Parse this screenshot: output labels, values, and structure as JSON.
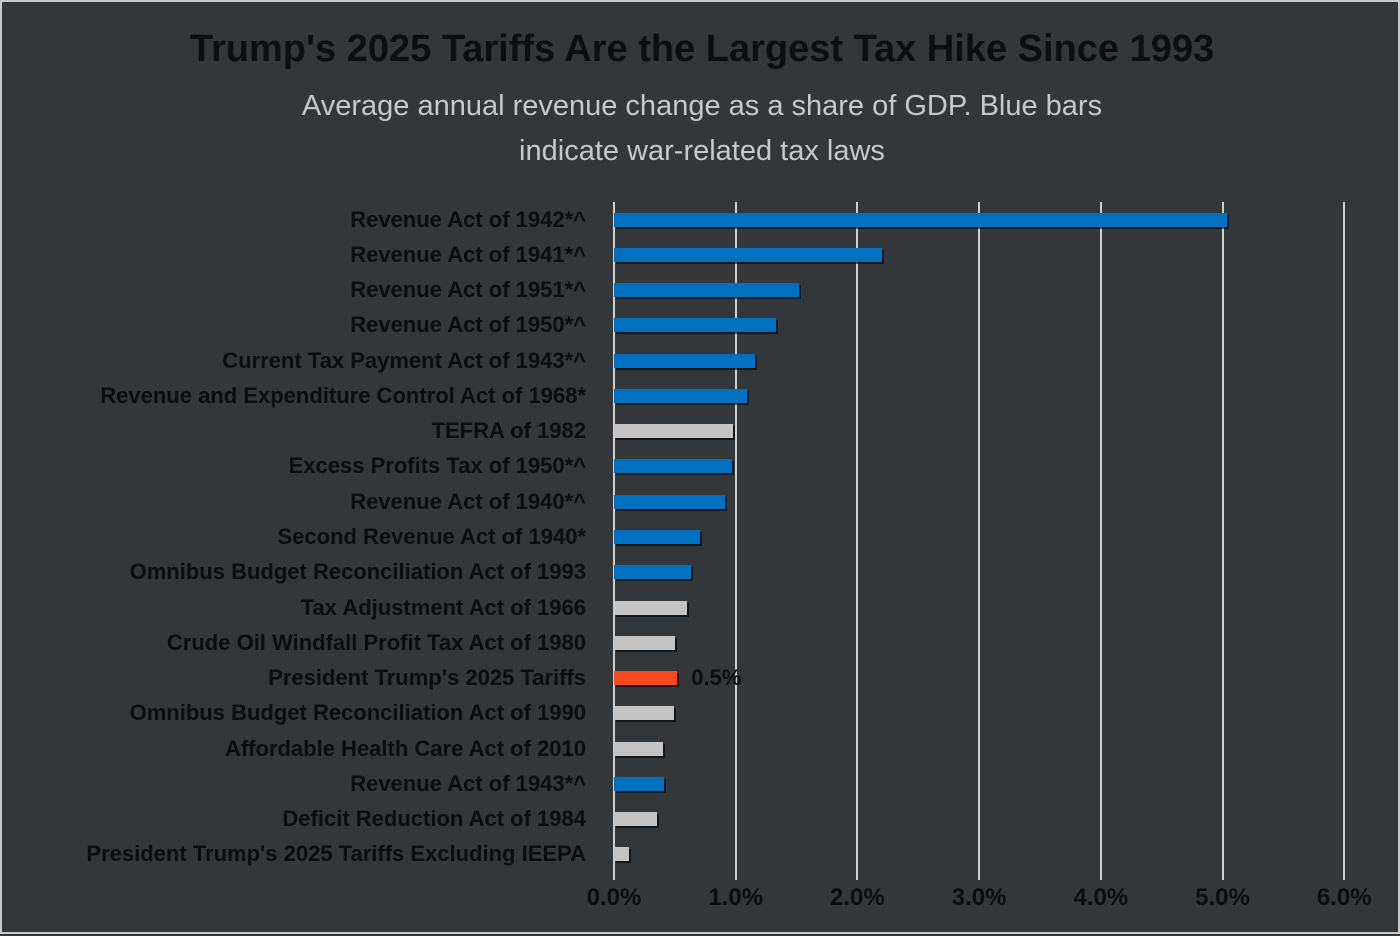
{
  "colors": {
    "background": "#33373a",
    "frame_border": "#c9c9c9",
    "title_text": "#0d0e0f",
    "subtitle_text": "#c7c8c9",
    "label_text": "#0c0d0e",
    "gridline": "#cdd0d1",
    "war_bar_blue": "#0070c0",
    "other_bar_gray": "#c4c4c4",
    "highlight_bar_orange": "#f54a1d"
  },
  "chart_data": {
    "type": "bar",
    "orientation": "horizontal",
    "title": "Trump's 2025 Tariffs Are the Largest Tax Hike Since 1993",
    "subtitle": "Average annual revenue change as a share of GDP. Blue bars indicate war-related tax laws",
    "subtitle_lines": [
      "Average annual revenue change as a share of GDP. Blue bars",
      "indicate war-related tax laws"
    ],
    "xlabel": "",
    "ylabel": "",
    "xlim": [
      0,
      6
    ],
    "x_ticks": [
      0,
      1,
      2,
      3,
      4,
      5,
      6
    ],
    "x_tick_labels": [
      "0.0%",
      "1.0%",
      "2.0%",
      "3.0%",
      "4.0%",
      "5.0%",
      "6.0%"
    ],
    "grid": true,
    "legend_position": "none",
    "value_unit": "% of GDP",
    "bars": [
      {
        "label": "Revenue Act of 1942*^",
        "value": 5.04,
        "color_key": "blue",
        "annotation": ""
      },
      {
        "label": "Revenue Act of 1941*^",
        "value": 2.2,
        "color_key": "blue",
        "annotation": ""
      },
      {
        "label": "Revenue Act of 1951*^",
        "value": 1.52,
        "color_key": "blue",
        "annotation": ""
      },
      {
        "label": "Revenue Act of 1950*^",
        "value": 1.33,
        "color_key": "blue",
        "annotation": ""
      },
      {
        "label": "Current Tax Payment Act of 1943*^",
        "value": 1.16,
        "color_key": "blue",
        "annotation": ""
      },
      {
        "label": "Revenue and Expenditure Control Act of 1968*",
        "value": 1.09,
        "color_key": "blue",
        "annotation": ""
      },
      {
        "label": "TEFRA of 1982",
        "value": 0.98,
        "color_key": "gray",
        "annotation": ""
      },
      {
        "label": "Excess Profits Tax of 1950*^",
        "value": 0.97,
        "color_key": "blue",
        "annotation": ""
      },
      {
        "label": "Revenue Act of 1940*^",
        "value": 0.91,
        "color_key": "blue",
        "annotation": ""
      },
      {
        "label": "Second Revenue Act of 1940*",
        "value": 0.71,
        "color_key": "blue",
        "annotation": ""
      },
      {
        "label": "Omnibus Budget Reconciliation Act of 1993",
        "value": 0.63,
        "color_key": "blue",
        "annotation": ""
      },
      {
        "label": "Tax Adjustment Act of 1966",
        "value": 0.6,
        "color_key": "gray",
        "annotation": ""
      },
      {
        "label": "Crude Oil Windfall Profit Tax Act of 1980",
        "value": 0.5,
        "color_key": "gray",
        "annotation": ""
      },
      {
        "label": "President Trump's 2025 Tariffs",
        "value": 0.52,
        "color_key": "orange",
        "annotation": "0.5%"
      },
      {
        "label": "Omnibus Budget Reconciliation Act of 1990",
        "value": 0.49,
        "color_key": "gray",
        "annotation": ""
      },
      {
        "label": "Affordable Health Care Act of 2010",
        "value": 0.4,
        "color_key": "gray",
        "annotation": ""
      },
      {
        "label": "Revenue Act of 1943*^",
        "value": 0.41,
        "color_key": "blue",
        "annotation": ""
      },
      {
        "label": "Deficit Reduction Act of 1984",
        "value": 0.35,
        "color_key": "gray",
        "annotation": ""
      },
      {
        "label": "President Trump's 2025 Tariffs Excluding IEEPA",
        "value": 0.12,
        "color_key": "gray",
        "annotation": ""
      }
    ]
  }
}
